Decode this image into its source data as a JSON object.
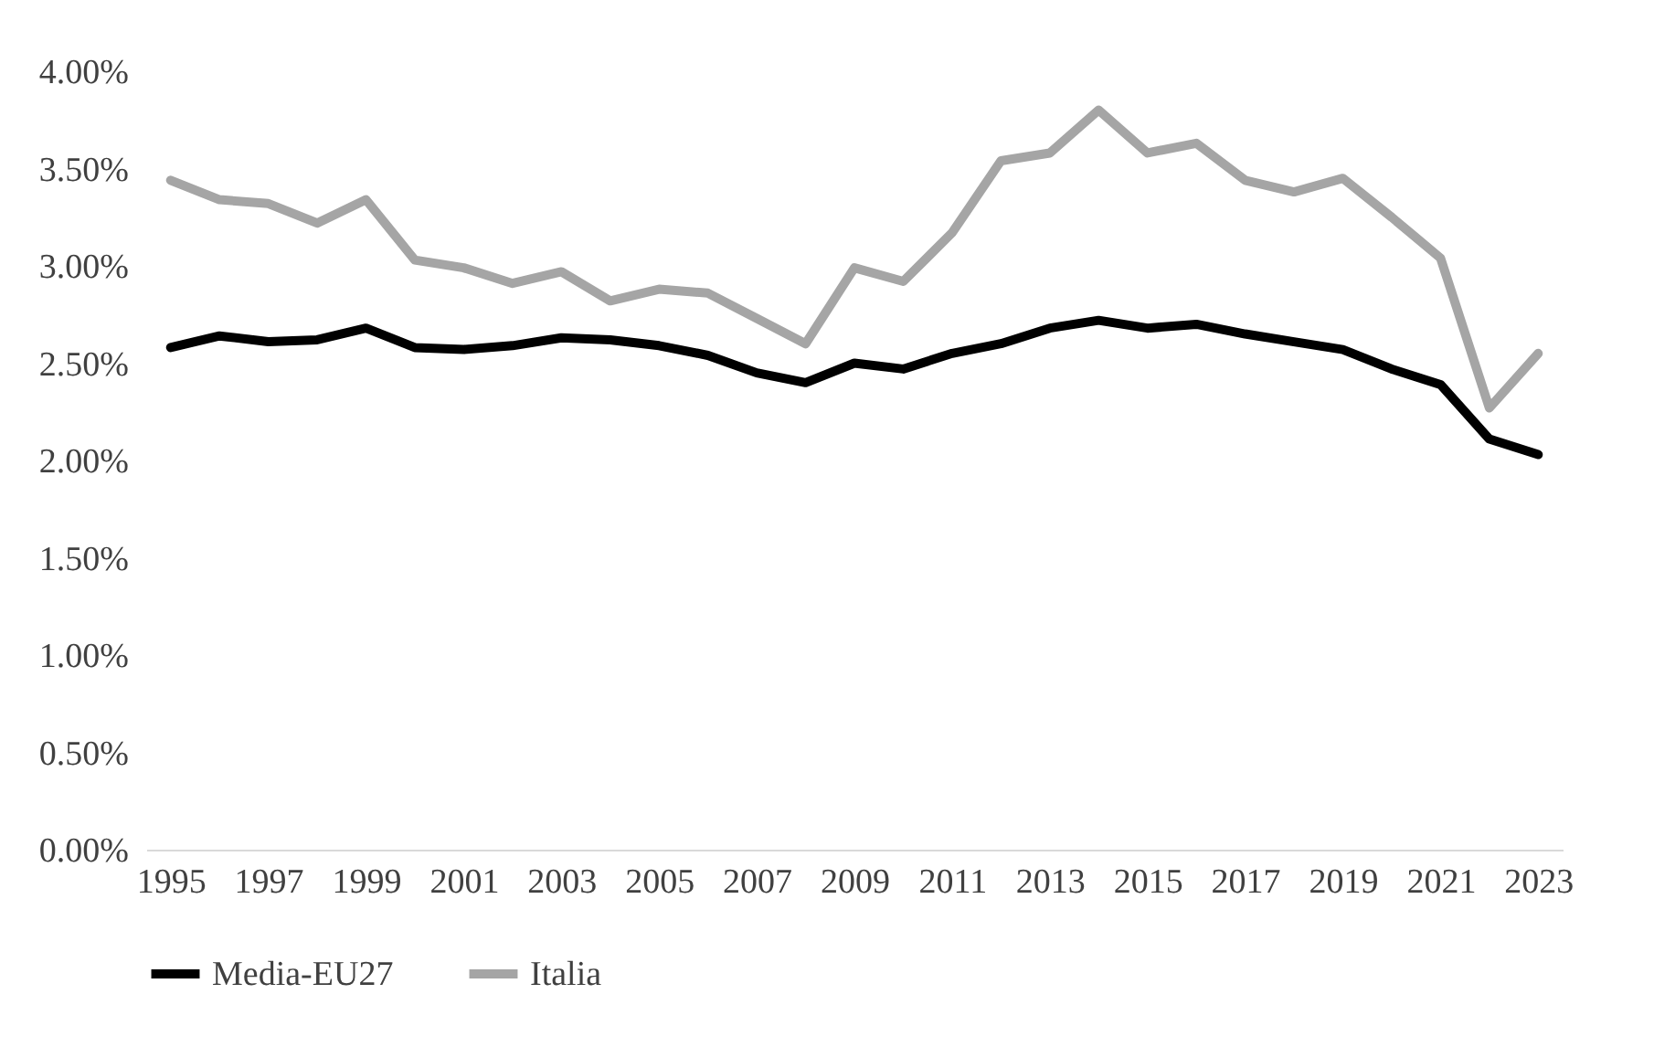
{
  "chart_data": {
    "type": "line",
    "categories": [
      "1995",
      null,
      "1997",
      null,
      "1999",
      null,
      "2001",
      null,
      "2003",
      null,
      "2005",
      null,
      "2007",
      null,
      "2009",
      null,
      "2011",
      null,
      "2013",
      null,
      "2015",
      null,
      "2017",
      null,
      "2019",
      null,
      "2021",
      null,
      "2023"
    ],
    "series": [
      {
        "name": "Media-EU27",
        "color": "#000000",
        "values": [
          2.58,
          2.64,
          2.61,
          2.62,
          2.68,
          2.58,
          2.57,
          2.59,
          2.63,
          2.62,
          2.59,
          2.54,
          2.45,
          2.4,
          2.5,
          2.47,
          2.55,
          2.6,
          2.68,
          2.72,
          2.68,
          2.7,
          2.65,
          2.61,
          2.57,
          2.47,
          2.39,
          2.11,
          2.03
        ]
      },
      {
        "name": "Italia",
        "color": "#a5a5a5",
        "values": [
          3.44,
          3.34,
          3.32,
          3.22,
          3.34,
          3.03,
          2.99,
          2.91,
          2.97,
          2.82,
          2.88,
          2.86,
          2.73,
          2.6,
          2.99,
          2.92,
          3.17,
          3.54,
          3.58,
          3.8,
          3.58,
          3.63,
          3.44,
          3.38,
          3.45,
          3.25,
          3.04,
          2.27,
          2.55
        ]
      }
    ],
    "ylim": [
      0,
      4
    ],
    "yticks": [
      {
        "value": 0,
        "label": "0.00%"
      },
      {
        "value": 0.5,
        "label": "0.50%"
      },
      {
        "value": 1,
        "label": "1.00%"
      },
      {
        "value": 1.5,
        "label": "1.50%"
      },
      {
        "value": 2,
        "label": "2.00%"
      },
      {
        "value": 2.5,
        "label": "2.50%"
      },
      {
        "value": 3,
        "label": "3.00%"
      },
      {
        "value": 3.5,
        "label": "3.50%"
      },
      {
        "value": 4,
        "label": "4.00%"
      }
    ],
    "grid": false,
    "legend": "bottom",
    "marker": "none",
    "line_style": "solid"
  }
}
